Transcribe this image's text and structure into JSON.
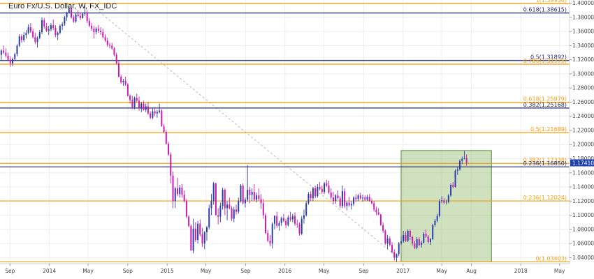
{
  "chart_data": {
    "type": "candlestick",
    "title": "Euro Fx/U.S. Dollar, W, FX_IDC",
    "ylim": [
      1.0315,
      1.4045
    ],
    "y_ticks": [
      "1.40000",
      "1.38000",
      "1.36000",
      "1.34000",
      "1.32000",
      "1.30000",
      "1.28000",
      "1.26000",
      "1.24000",
      "1.22000",
      "1.20000",
      "1.18000",
      "1.16000",
      "1.14000",
      "1.12000",
      "1.10000",
      "1.08000",
      "1.06000",
      "1.04000"
    ],
    "y_tick_values": [
      1.4,
      1.38,
      1.36,
      1.34,
      1.32,
      1.3,
      1.28,
      1.26,
      1.24,
      1.22,
      1.2,
      1.18,
      1.16,
      1.14,
      1.12,
      1.1,
      1.08,
      1.06,
      1.04
    ],
    "x_ticks": [
      "Sep",
      "2014",
      "May",
      "Sep",
      "2015",
      "May",
      "Sep",
      "2016",
      "May",
      "Sep",
      "2017",
      "May",
      "Aug",
      "2018",
      "May"
    ],
    "x_tick_dates": [
      "2013-09",
      "2014-01",
      "2014-05",
      "2014-09",
      "2015-01",
      "2015-05",
      "2015-09",
      "2016-01",
      "2016-05",
      "2016-09",
      "2017-01",
      "2017-05",
      "2017-08",
      "2018-01",
      "2018-05"
    ],
    "x_range": [
      "2013-08",
      "2018-06"
    ],
    "colors": {
      "up": "#2b3ea8",
      "down": "#c81bb0",
      "fib_orange": "#f59e0b",
      "fib_navy": "#232a6e",
      "box_fill": "#a8c88a",
      "box_stroke": "#5b8a3c",
      "price_tag": "#1e40af",
      "trendline": "#bbbbbb"
    },
    "fib_levels": [
      {
        "label": "1(1.39934)",
        "value": 1.39934,
        "color": "orange"
      },
      {
        "label": "0.618(1.38615)",
        "value": 1.38615,
        "color": "navy"
      },
      {
        "label": "0.5(1.31892)",
        "value": 1.31892,
        "color": "navy"
      },
      {
        "label": "0.786(1.31375)",
        "value": 1.31375,
        "color": "orange"
      },
      {
        "label": "0.618(1.25979)",
        "value": 1.25979,
        "color": "orange"
      },
      {
        "label": "0.382(1.25168)",
        "value": 1.25168,
        "color": "navy"
      },
      {
        "label": "0.5(1.21689)",
        "value": 1.21689,
        "color": "orange"
      },
      {
        "label": "0.382(1.17338)",
        "value": 1.17338,
        "color": "orange"
      },
      {
        "label": "0.236(1.16850)",
        "value": 1.1685,
        "color": "navy"
      },
      {
        "label": "0.236(1.12024)",
        "value": 1.12024,
        "color": "orange"
      },
      {
        "label": "0(1.03403)",
        "value": 1.03403,
        "color": "orange"
      }
    ],
    "current_price": "1.17410",
    "current_price_value": 1.1741,
    "highlight_box": {
      "date_start": "2016-12-26",
      "date_end": "2017-10-02",
      "y_low": 1.03403,
      "y_high": 1.1915
    },
    "trendline": {
      "from": [
        "2014-05-05",
        1.39934
      ],
      "to": [
        "2017-01-02",
        1.03403
      ]
    },
    "candles_start": "2013-08-05",
    "candles_week_step": 1,
    "candles": [
      [
        1.327,
        1.335,
        1.32,
        1.333
      ],
      [
        1.333,
        1.34,
        1.328,
        1.33
      ],
      [
        1.33,
        1.336,
        1.323,
        1.326
      ],
      [
        1.326,
        1.33,
        1.318,
        1.32
      ],
      [
        1.32,
        1.325,
        1.31,
        1.315
      ],
      [
        1.315,
        1.323,
        1.311,
        1.321
      ],
      [
        1.321,
        1.33,
        1.318,
        1.328
      ],
      [
        1.328,
        1.342,
        1.325,
        1.34
      ],
      [
        1.34,
        1.356,
        1.338,
        1.353
      ],
      [
        1.353,
        1.356,
        1.344,
        1.348
      ],
      [
        1.348,
        1.359,
        1.345,
        1.355
      ],
      [
        1.355,
        1.362,
        1.35,
        1.358
      ],
      [
        1.358,
        1.37,
        1.356,
        1.366
      ],
      [
        1.366,
        1.372,
        1.358,
        1.36
      ],
      [
        1.36,
        1.364,
        1.35,
        1.352
      ],
      [
        1.352,
        1.358,
        1.342,
        1.345
      ],
      [
        1.345,
        1.353,
        1.337,
        1.351
      ],
      [
        1.351,
        1.362,
        1.349,
        1.359
      ],
      [
        1.359,
        1.38,
        1.356,
        1.376
      ],
      [
        1.376,
        1.379,
        1.364,
        1.367
      ],
      [
        1.367,
        1.372,
        1.359,
        1.361
      ],
      [
        1.361,
        1.368,
        1.355,
        1.363
      ],
      [
        1.363,
        1.372,
        1.36,
        1.369
      ],
      [
        1.369,
        1.377,
        1.362,
        1.365
      ],
      [
        1.365,
        1.369,
        1.352,
        1.355
      ],
      [
        1.355,
        1.36,
        1.348,
        1.358
      ],
      [
        1.358,
        1.37,
        1.356,
        1.368
      ],
      [
        1.368,
        1.373,
        1.362,
        1.37
      ],
      [
        1.37,
        1.382,
        1.368,
        1.38
      ],
      [
        1.38,
        1.388,
        1.375,
        1.387
      ],
      [
        1.387,
        1.396,
        1.386,
        1.393
      ],
      [
        1.393,
        1.395,
        1.378,
        1.38
      ],
      [
        1.38,
        1.383,
        1.372,
        1.374
      ],
      [
        1.374,
        1.386,
        1.372,
        1.384
      ],
      [
        1.384,
        1.39,
        1.38,
        1.382
      ],
      [
        1.382,
        1.387,
        1.376,
        1.379
      ],
      [
        1.379,
        1.387,
        1.378,
        1.385
      ],
      [
        1.385,
        1.3995,
        1.382,
        1.387
      ],
      [
        1.387,
        1.39,
        1.372,
        1.375
      ],
      [
        1.375,
        1.379,
        1.366,
        1.368
      ],
      [
        1.368,
        1.372,
        1.361,
        1.364
      ],
      [
        1.364,
        1.368,
        1.35,
        1.359
      ],
      [
        1.359,
        1.366,
        1.356,
        1.364
      ],
      [
        1.364,
        1.369,
        1.358,
        1.361
      ],
      [
        1.361,
        1.366,
        1.355,
        1.359
      ],
      [
        1.359,
        1.364,
        1.35,
        1.352
      ],
      [
        1.352,
        1.356,
        1.345,
        1.347
      ],
      [
        1.347,
        1.351,
        1.338,
        1.341
      ],
      [
        1.341,
        1.344,
        1.336,
        1.34
      ],
      [
        1.34,
        1.344,
        1.334,
        1.336
      ],
      [
        1.336,
        1.338,
        1.325,
        1.327
      ],
      [
        1.327,
        1.33,
        1.313,
        1.315
      ],
      [
        1.315,
        1.318,
        1.295,
        1.296
      ],
      [
        1.296,
        1.299,
        1.286,
        1.288
      ],
      [
        1.288,
        1.293,
        1.283,
        1.29
      ],
      [
        1.29,
        1.296,
        1.283,
        1.285
      ],
      [
        1.285,
        1.287,
        1.268,
        1.269
      ],
      [
        1.269,
        1.271,
        1.258,
        1.263
      ],
      [
        1.263,
        1.269,
        1.25,
        1.253
      ],
      [
        1.253,
        1.268,
        1.25,
        1.266
      ],
      [
        1.266,
        1.272,
        1.26,
        1.262
      ],
      [
        1.262,
        1.268,
        1.248,
        1.252
      ],
      [
        1.252,
        1.26,
        1.246,
        1.258
      ],
      [
        1.258,
        1.262,
        1.248,
        1.249
      ],
      [
        1.249,
        1.258,
        1.246,
        1.254
      ],
      [
        1.254,
        1.26,
        1.242,
        1.244
      ],
      [
        1.244,
        1.247,
        1.236,
        1.238
      ],
      [
        1.238,
        1.252,
        1.236,
        1.247
      ],
      [
        1.247,
        1.253,
        1.24,
        1.244
      ],
      [
        1.244,
        1.249,
        1.238,
        1.246
      ],
      [
        1.246,
        1.258,
        1.244,
        1.248
      ],
      [
        1.248,
        1.25,
        1.225,
        1.226
      ],
      [
        1.226,
        1.229,
        1.216,
        1.218
      ],
      [
        1.218,
        1.22,
        1.2,
        1.201
      ],
      [
        1.201,
        1.204,
        1.184,
        1.186
      ],
      [
        1.186,
        1.189,
        1.145,
        1.156
      ],
      [
        1.156,
        1.162,
        1.11,
        1.12
      ],
      [
        1.12,
        1.14,
        1.11,
        1.138
      ],
      [
        1.138,
        1.153,
        1.127,
        1.13
      ],
      [
        1.13,
        1.143,
        1.125,
        1.139
      ],
      [
        1.139,
        1.144,
        1.125,
        1.129
      ],
      [
        1.129,
        1.135,
        1.118,
        1.12
      ],
      [
        1.12,
        1.123,
        1.096,
        1.098
      ],
      [
        1.098,
        1.1,
        1.083,
        1.085
      ],
      [
        1.085,
        1.087,
        1.05,
        1.05
      ],
      [
        1.05,
        1.095,
        1.046,
        1.081
      ],
      [
        1.081,
        1.09,
        1.062,
        1.065
      ],
      [
        1.065,
        1.092,
        1.06,
        1.088
      ],
      [
        1.088,
        1.094,
        1.07,
        1.073
      ],
      [
        1.073,
        1.082,
        1.055,
        1.06
      ],
      [
        1.06,
        1.078,
        1.052,
        1.076
      ],
      [
        1.076,
        1.085,
        1.064,
        1.083
      ],
      [
        1.083,
        1.115,
        1.08,
        1.11
      ],
      [
        1.11,
        1.13,
        1.1,
        1.12
      ],
      [
        1.12,
        1.147,
        1.115,
        1.145
      ],
      [
        1.145,
        1.146,
        1.1,
        1.1
      ],
      [
        1.1,
        1.11,
        1.087,
        1.098
      ],
      [
        1.098,
        1.118,
        1.09,
        1.113
      ],
      [
        1.113,
        1.139,
        1.108,
        1.136
      ],
      [
        1.136,
        1.138,
        1.1,
        1.11
      ],
      [
        1.11,
        1.12,
        1.093,
        1.115
      ],
      [
        1.115,
        1.125,
        1.108,
        1.11
      ],
      [
        1.11,
        1.113,
        1.092,
        1.095
      ],
      [
        1.095,
        1.112,
        1.09,
        1.108
      ],
      [
        1.108,
        1.115,
        1.101,
        1.105
      ],
      [
        1.105,
        1.125,
        1.102,
        1.12
      ],
      [
        1.12,
        1.144,
        1.118,
        1.142
      ],
      [
        1.142,
        1.145,
        1.115,
        1.117
      ],
      [
        1.117,
        1.125,
        1.111,
        1.122
      ],
      [
        1.122,
        1.171,
        1.119,
        1.136
      ],
      [
        1.136,
        1.14,
        1.117,
        1.129
      ],
      [
        1.129,
        1.138,
        1.12,
        1.133
      ],
      [
        1.133,
        1.144,
        1.12,
        1.122
      ],
      [
        1.122,
        1.132,
        1.118,
        1.128
      ],
      [
        1.128,
        1.138,
        1.12,
        1.123
      ],
      [
        1.123,
        1.13,
        1.109,
        1.117
      ],
      [
        1.117,
        1.123,
        1.095,
        1.1
      ],
      [
        1.1,
        1.103,
        1.073,
        1.075
      ],
      [
        1.075,
        1.079,
        1.062,
        1.064
      ],
      [
        1.064,
        1.072,
        1.056,
        1.06
      ],
      [
        1.06,
        1.09,
        1.053,
        1.088
      ],
      [
        1.088,
        1.1,
        1.08,
        1.099
      ],
      [
        1.099,
        1.105,
        1.082,
        1.085
      ],
      [
        1.085,
        1.092,
        1.078,
        1.089
      ],
      [
        1.089,
        1.098,
        1.085,
        1.096
      ],
      [
        1.096,
        1.102,
        1.09,
        1.092
      ],
      [
        1.092,
        1.095,
        1.082,
        1.086
      ],
      [
        1.086,
        1.1,
        1.084,
        1.097
      ],
      [
        1.097,
        1.105,
        1.091,
        1.094
      ],
      [
        1.094,
        1.102,
        1.09,
        1.099
      ],
      [
        1.099,
        1.104,
        1.085,
        1.088
      ],
      [
        1.088,
        1.094,
        1.082,
        1.087
      ],
      [
        1.087,
        1.09,
        1.071,
        1.074
      ],
      [
        1.074,
        1.099,
        1.072,
        1.095
      ],
      [
        1.095,
        1.108,
        1.088,
        1.1
      ],
      [
        1.1,
        1.12,
        1.098,
        1.117
      ],
      [
        1.117,
        1.133,
        1.115,
        1.13
      ],
      [
        1.13,
        1.134,
        1.12,
        1.124
      ],
      [
        1.124,
        1.14,
        1.12,
        1.138
      ],
      [
        1.138,
        1.142,
        1.124,
        1.127
      ],
      [
        1.127,
        1.144,
        1.125,
        1.14
      ],
      [
        1.14,
        1.147,
        1.135,
        1.137
      ],
      [
        1.137,
        1.142,
        1.13,
        1.133
      ],
      [
        1.133,
        1.147,
        1.13,
        1.145
      ],
      [
        1.145,
        1.15,
        1.14,
        1.142
      ],
      [
        1.142,
        1.149,
        1.13,
        1.132
      ],
      [
        1.132,
        1.138,
        1.122,
        1.125
      ],
      [
        1.125,
        1.133,
        1.116,
        1.12
      ],
      [
        1.12,
        1.13,
        1.116,
        1.128
      ],
      [
        1.128,
        1.135,
        1.122,
        1.124
      ],
      [
        1.124,
        1.127,
        1.11,
        1.113
      ],
      [
        1.113,
        1.142,
        1.11,
        1.134
      ],
      [
        1.134,
        1.138,
        1.11,
        1.113
      ],
      [
        1.113,
        1.12,
        1.107,
        1.118
      ],
      [
        1.118,
        1.126,
        1.112,
        1.114
      ],
      [
        1.114,
        1.12,
        1.108,
        1.116
      ],
      [
        1.116,
        1.127,
        1.113,
        1.125
      ],
      [
        1.125,
        1.13,
        1.119,
        1.123
      ],
      [
        1.123,
        1.13,
        1.12,
        1.128
      ],
      [
        1.128,
        1.132,
        1.122,
        1.124
      ],
      [
        1.124,
        1.129,
        1.119,
        1.125
      ],
      [
        1.125,
        1.128,
        1.12,
        1.122
      ],
      [
        1.122,
        1.129,
        1.12,
        1.126
      ],
      [
        1.126,
        1.13,
        1.119,
        1.12
      ],
      [
        1.12,
        1.124,
        1.115,
        1.117
      ],
      [
        1.117,
        1.12,
        1.105,
        1.108
      ],
      [
        1.108,
        1.112,
        1.1,
        1.104
      ],
      [
        1.104,
        1.11,
        1.1,
        1.101
      ],
      [
        1.101,
        1.102,
        1.085,
        1.086
      ],
      [
        1.086,
        1.09,
        1.075,
        1.078
      ],
      [
        1.078,
        1.08,
        1.058,
        1.06
      ],
      [
        1.06,
        1.072,
        1.052,
        1.067
      ],
      [
        1.067,
        1.07,
        1.056,
        1.058
      ],
      [
        1.058,
        1.062,
        1.046,
        1.048
      ],
      [
        1.048,
        1.052,
        1.036,
        1.04
      ],
      [
        1.04,
        1.046,
        1.034,
        1.045
      ],
      [
        1.045,
        1.062,
        1.042,
        1.06
      ],
      [
        1.06,
        1.07,
        1.058,
        1.063
      ],
      [
        1.063,
        1.078,
        1.061,
        1.072
      ],
      [
        1.072,
        1.077,
        1.062,
        1.064
      ],
      [
        1.064,
        1.08,
        1.062,
        1.078
      ],
      [
        1.078,
        1.08,
        1.065,
        1.069
      ],
      [
        1.069,
        1.071,
        1.057,
        1.06
      ],
      [
        1.06,
        1.064,
        1.052,
        1.054
      ],
      [
        1.054,
        1.069,
        1.052,
        1.066
      ],
      [
        1.066,
        1.069,
        1.056,
        1.058
      ],
      [
        1.058,
        1.064,
        1.054,
        1.061
      ],
      [
        1.061,
        1.076,
        1.06,
        1.074
      ],
      [
        1.074,
        1.08,
        1.068,
        1.07
      ],
      [
        1.07,
        1.072,
        1.06,
        1.062
      ],
      [
        1.062,
        1.068,
        1.058,
        1.066
      ],
      [
        1.066,
        1.088,
        1.065,
        1.086
      ],
      [
        1.086,
        1.095,
        1.084,
        1.092
      ],
      [
        1.092,
        1.102,
        1.09,
        1.099
      ],
      [
        1.099,
        1.123,
        1.097,
        1.12
      ],
      [
        1.12,
        1.127,
        1.117,
        1.121
      ],
      [
        1.121,
        1.124,
        1.116,
        1.118
      ],
      [
        1.118,
        1.122,
        1.115,
        1.119
      ],
      [
        1.119,
        1.13,
        1.117,
        1.128
      ],
      [
        1.128,
        1.145,
        1.126,
        1.143
      ],
      [
        1.143,
        1.147,
        1.138,
        1.14
      ],
      [
        1.14,
        1.165,
        1.139,
        1.163
      ],
      [
        1.163,
        1.169,
        1.157,
        1.165
      ],
      [
        1.165,
        1.179,
        1.163,
        1.177
      ],
      [
        1.177,
        1.183,
        1.172,
        1.18
      ],
      [
        1.18,
        1.191,
        1.179,
        1.181
      ],
      [
        1.181,
        1.186,
        1.17,
        1.1741
      ]
    ]
  }
}
